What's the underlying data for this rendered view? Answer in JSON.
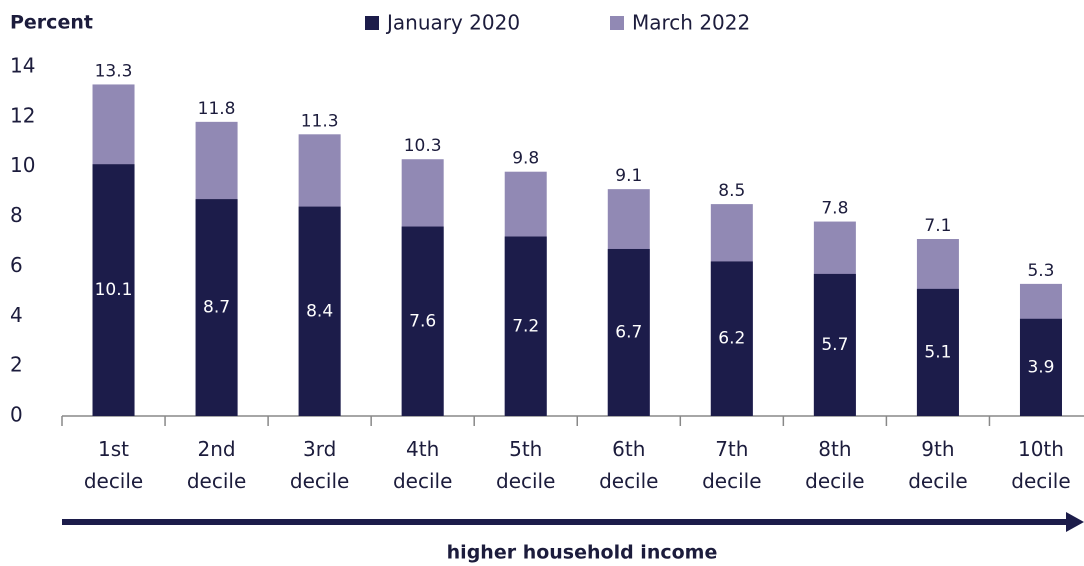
{
  "chart_data": {
    "type": "bar",
    "overlap": true,
    "y_label": "Percent",
    "x_label": "higher household income",
    "categories": [
      "1st decile",
      "2nd decile",
      "3rd decile",
      "4th decile",
      "5th decile",
      "6th decile",
      "7th decile",
      "8th decile",
      "9th decile",
      "10th decile"
    ],
    "series": [
      {
        "name": "January 2020",
        "color": "#1c1c4a",
        "values": [
          10.1,
          8.7,
          8.4,
          7.6,
          7.2,
          6.7,
          6.2,
          5.7,
          5.1,
          3.9
        ]
      },
      {
        "name": "March 2022",
        "color": "#9189b4",
        "values": [
          13.3,
          11.8,
          11.3,
          10.3,
          9.8,
          9.1,
          8.5,
          7.8,
          7.1,
          5.3
        ]
      }
    ],
    "ylim": [
      0,
      14
    ],
    "yticks": [
      0,
      2,
      4,
      6,
      8,
      10,
      12,
      14
    ],
    "grid": false,
    "legend": "top"
  }
}
